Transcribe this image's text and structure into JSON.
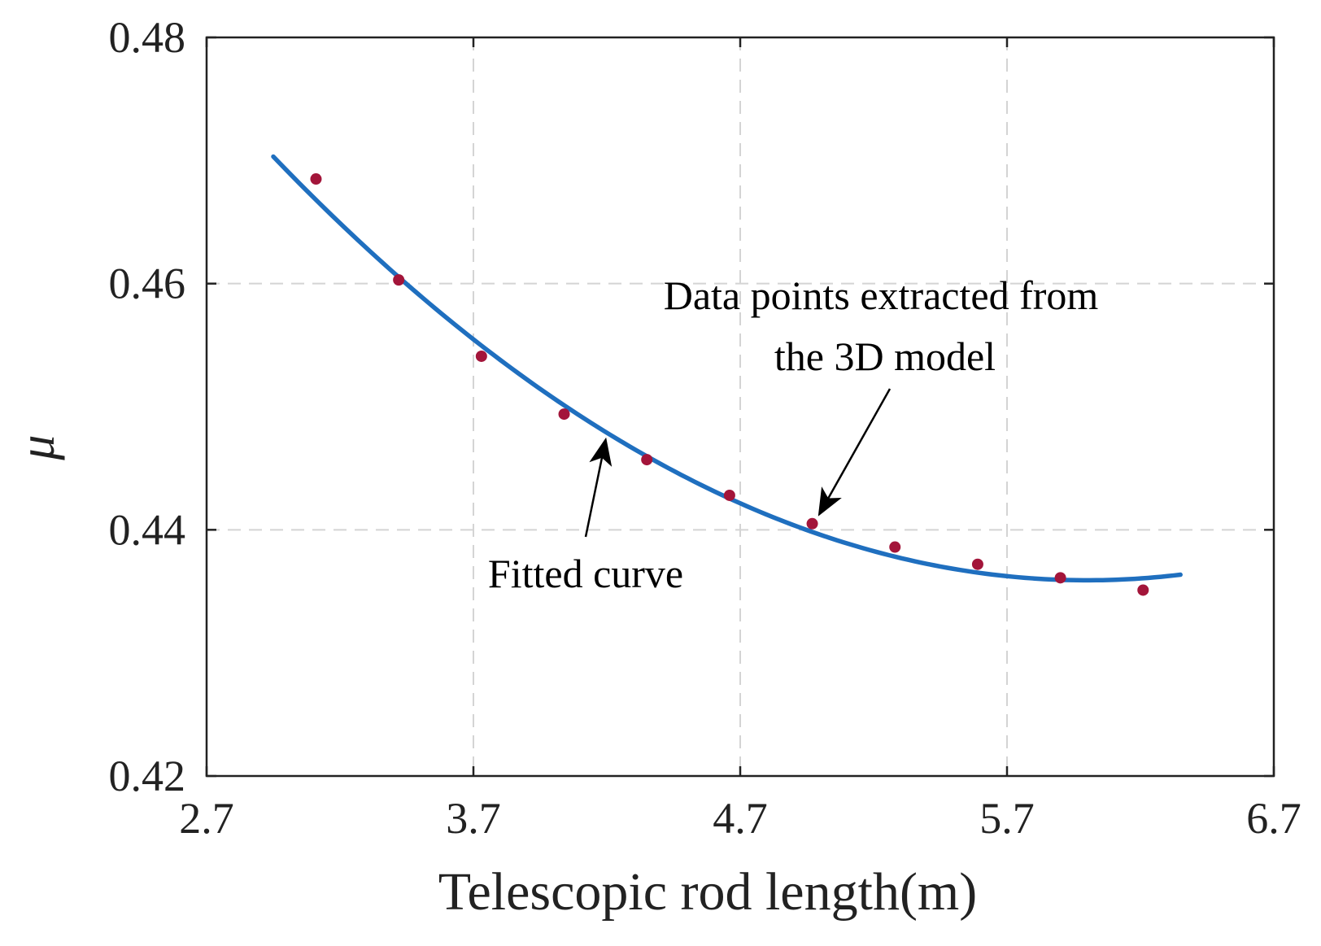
{
  "chart_data": {
    "type": "scatter",
    "title": "",
    "xlabel": "Telescopic rod length(m)",
    "ylabel": "μ",
    "xlim": [
      2.7,
      6.7
    ],
    "ylim": [
      0.42,
      0.48
    ],
    "xticks": [
      2.7,
      3.7,
      4.7,
      5.7,
      6.7
    ],
    "xtick_labels": [
      "2.7",
      "3.7",
      "4.7",
      "5.7",
      "6.7"
    ],
    "yticks": [
      0.42,
      0.44,
      0.46,
      0.48
    ],
    "ytick_labels": [
      "0.42",
      "0.44",
      "0.46",
      "0.48"
    ],
    "grid": true,
    "series": [
      {
        "name": "Data points extracted from the 3D model",
        "kind": "scatter",
        "color": "#a3153a",
        "x": [
          3.11,
          3.42,
          3.73,
          4.04,
          4.35,
          4.66,
          4.97,
          5.28,
          5.59,
          5.9,
          6.21
        ],
        "y": [
          0.4685,
          0.4603,
          0.4541,
          0.4494,
          0.4457,
          0.4428,
          0.4405,
          0.4386,
          0.4372,
          0.4361,
          0.4351
        ]
      },
      {
        "name": "Fitted curve",
        "kind": "line",
        "color": "#1f6fbf",
        "x_range": [
          2.95,
          6.35
        ],
        "quadratic_vertex_x": 6.0,
        "quadratic_vertex_y": 0.4359,
        "quadratic_a": 0.0037
      }
    ],
    "annotations": [
      {
        "id": "data",
        "lines": [
          "Data points extracted from",
          "the 3D model"
        ],
        "target": [
          4.97,
          0.4405
        ]
      },
      {
        "id": "fit",
        "lines": [
          "Fitted curve"
        ],
        "target": [
          4.2,
          0.4478
        ]
      }
    ]
  }
}
